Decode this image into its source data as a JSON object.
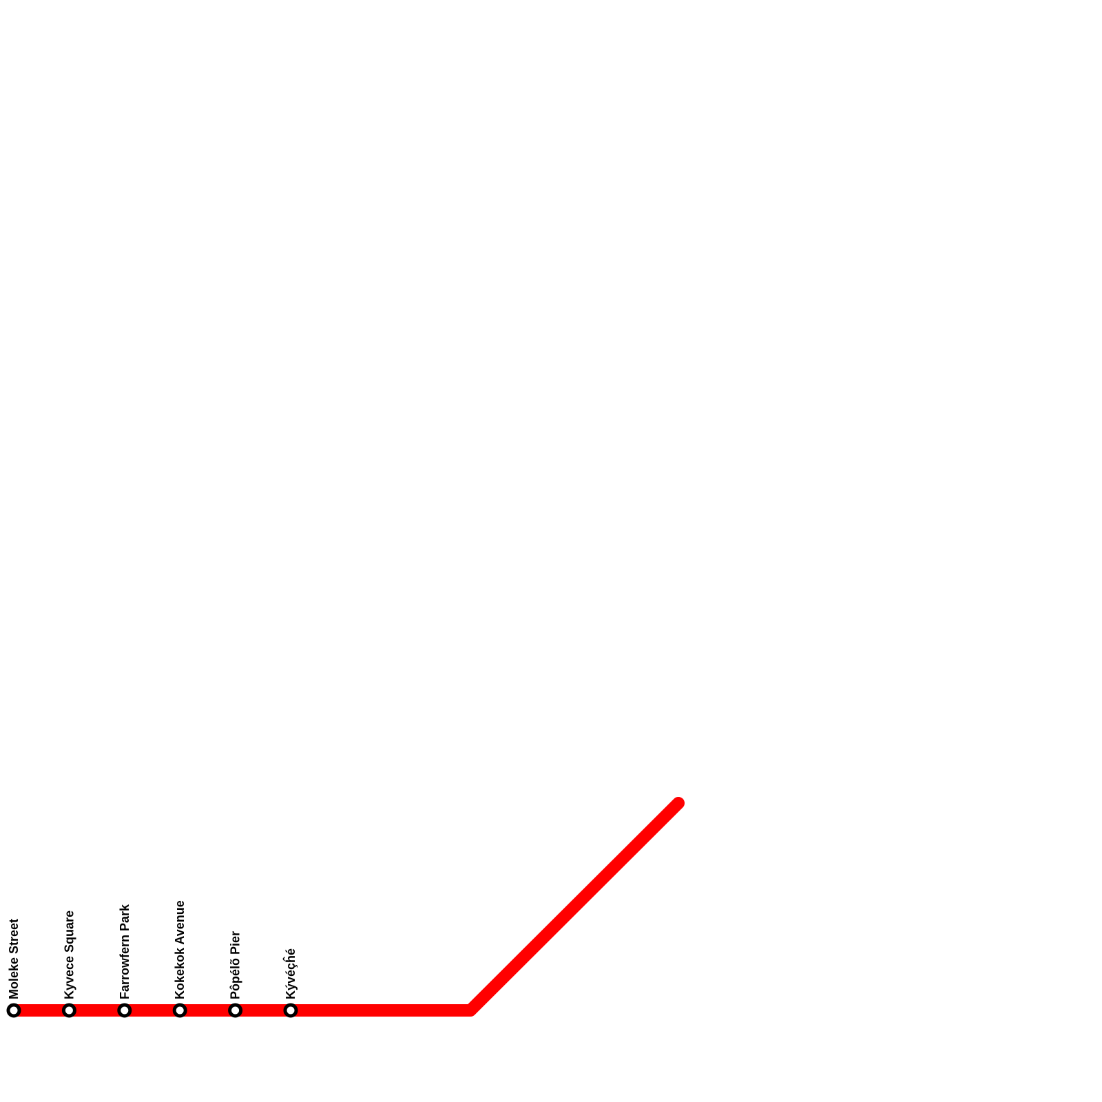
{
  "stations": [
    "Moleke Street",
    "Kyvece Square",
    "Farrowfern Park",
    "Kokekok Avenue",
    "Pôpélõ Pier",
    "Kývéçĥé"
  ]
}
